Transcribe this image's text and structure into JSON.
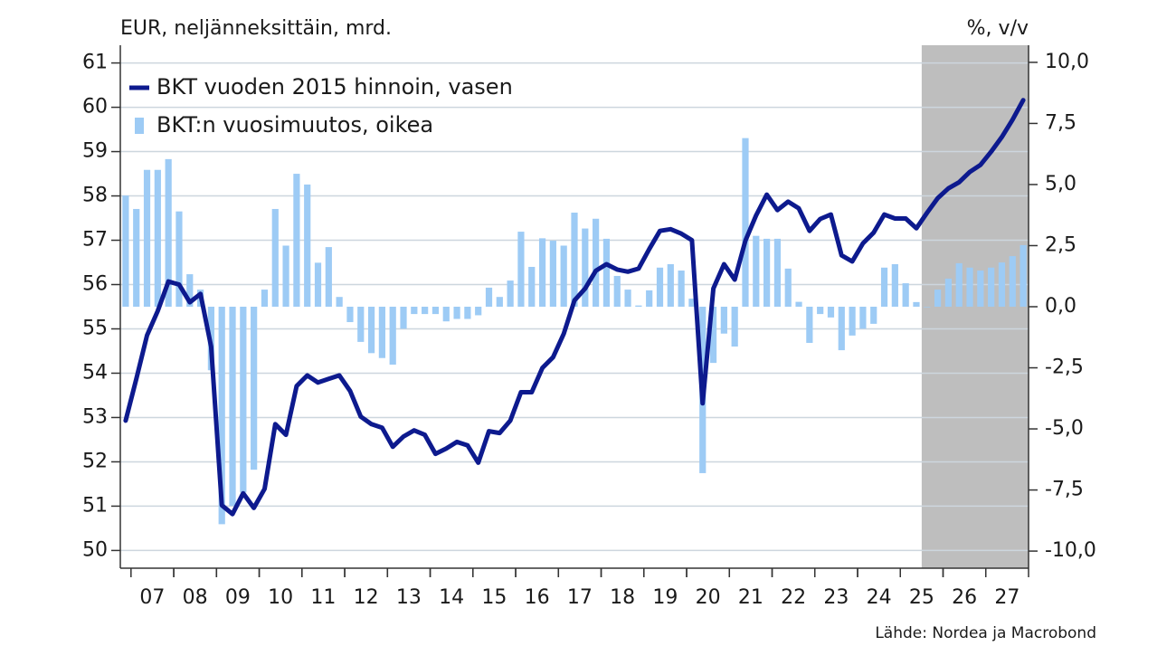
{
  "chart_data": {
    "type": "bar-line",
    "title": "EUR, neljänneksittäin, mrd.",
    "y2_title": "%, v/v",
    "source": "Lähde: Nordea ja Macrobond",
    "legend": "upper left",
    "grid": true,
    "categories": [
      null,
      null,
      "07",
      null,
      null,
      null,
      "08",
      null,
      null,
      null,
      "09",
      null,
      null,
      null,
      "10",
      null,
      null,
      null,
      "11",
      null,
      null,
      null,
      "12",
      null,
      null,
      null,
      "13",
      null,
      null,
      null,
      "14",
      null,
      null,
      null,
      "15",
      null,
      null,
      null,
      "16",
      null,
      null,
      null,
      "17",
      null,
      null,
      null,
      "18",
      null,
      null,
      null,
      "19",
      null,
      null,
      null,
      "20",
      null,
      null,
      null,
      "21",
      null,
      null,
      null,
      "22",
      null,
      null,
      null,
      "23",
      null,
      null,
      null,
      "24",
      null,
      null,
      null,
      "25",
      null,
      null,
      null,
      "26",
      null,
      null,
      null,
      "27",
      null,
      null
    ],
    "ylim": [
      49.6,
      61.4
    ],
    "yticks": [
      50,
      51,
      52,
      53,
      54,
      55,
      56,
      57,
      58,
      59,
      60,
      61
    ],
    "y2lim": [
      -10.7,
      10.7
    ],
    "y2ticks": [
      {
        "value": -10,
        "label": "-10,0"
      },
      {
        "value": -7.5,
        "label": "-7,5"
      },
      {
        "value": -5,
        "label": "-5,0"
      },
      {
        "value": -2.5,
        "label": "-2,5"
      },
      {
        "value": 0,
        "label": "0,0"
      },
      {
        "value": 2.5,
        "label": "2,5"
      },
      {
        "value": 5,
        "label": "5,0"
      },
      {
        "value": 7.5,
        "label": "7,5"
      },
      {
        "value": 10,
        "label": "10,0"
      }
    ],
    "series": [
      {
        "name": "BKT vuoden 2015 hinnoin, vasen",
        "type": "line",
        "axis": "y",
        "color": "#0d1a8e",
        "values": [
          52.93,
          53.87,
          54.85,
          55.4,
          56.07,
          56.0,
          55.6,
          55.79,
          54.6,
          51.02,
          50.82,
          51.29,
          50.96,
          51.39,
          52.85,
          52.61,
          53.71,
          53.95,
          53.79,
          53.87,
          53.95,
          53.6,
          53.02,
          52.85,
          52.77,
          52.34,
          52.57,
          52.71,
          52.61,
          52.18,
          52.3,
          52.45,
          52.37,
          51.98,
          52.69,
          52.65,
          52.93,
          53.57,
          53.57,
          54.12,
          54.36,
          54.89,
          55.64,
          55.91,
          56.31,
          56.46,
          56.34,
          56.29,
          56.36,
          56.8,
          57.21,
          57.25,
          57.15,
          57.0,
          53.32,
          55.91,
          56.46,
          56.11,
          56.99,
          57.56,
          58.03,
          57.68,
          57.87,
          57.72,
          57.21,
          57.48,
          57.58,
          56.66,
          56.52,
          56.93,
          57.17,
          57.58,
          57.49,
          57.49,
          57.27,
          57.62,
          57.95,
          58.17,
          58.31,
          58.54,
          58.7,
          59.0,
          59.33,
          59.72,
          60.16
        ]
      },
      {
        "name": "BKT:n vuosimuutos, oikea",
        "type": "bar",
        "axis": "y2",
        "color": "#9dcbf5",
        "values": [
          4.55,
          4.0,
          5.6,
          5.6,
          6.04,
          3.9,
          1.33,
          0.7,
          -2.6,
          -8.9,
          -8.15,
          -7.6,
          -6.67,
          0.7,
          4.0,
          2.5,
          5.44,
          5.0,
          1.8,
          2.44,
          0.4,
          -0.63,
          -1.44,
          -1.9,
          -2.1,
          -2.37,
          -0.9,
          -0.3,
          -0.3,
          -0.3,
          -0.6,
          -0.5,
          -0.5,
          -0.35,
          0.78,
          0.4,
          1.07,
          3.07,
          1.63,
          2.8,
          2.7,
          2.5,
          3.85,
          3.2,
          3.6,
          2.78,
          1.26,
          0.7,
          0.05,
          0.67,
          1.6,
          1.74,
          1.48,
          0.33,
          -6.81,
          -2.3,
          -1.1,
          -1.63,
          6.9,
          2.9,
          2.78,
          2.78,
          1.56,
          0.2,
          -1.48,
          -0.3,
          -0.44,
          -1.78,
          -1.18,
          -0.9,
          -0.7,
          1.6,
          1.74,
          0.96,
          0.19,
          0.0,
          0.7,
          1.15,
          1.78,
          1.6,
          1.48,
          1.6,
          1.81,
          2.07,
          2.52
        ]
      }
    ]
  }
}
